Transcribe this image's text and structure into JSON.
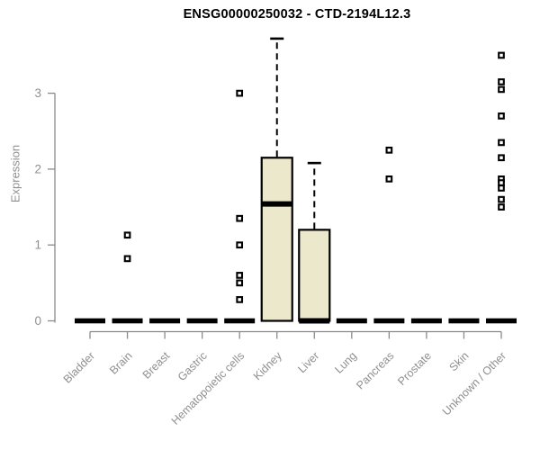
{
  "chart": {
    "title": "ENSG00000250032 - CTD-2194L12.3",
    "ylabel": "Expression"
  },
  "chart_data": {
    "type": "boxplot",
    "title": "ENSG00000250032 - CTD-2194L12.3",
    "xlabel": "",
    "ylabel": "Expression",
    "ylim": [
      0,
      3.8
    ],
    "yticks": [
      0,
      1,
      2,
      3
    ],
    "grid": false,
    "legend": "none",
    "categories": [
      "Bladder",
      "Brain",
      "Breast",
      "Gastric",
      "Hematopoietic cells",
      "Kidney",
      "Liver",
      "Lung",
      "Pancreas",
      "Prostate",
      "Skin",
      "Unknown / Other"
    ],
    "boxes": [
      {
        "category": "Bladder",
        "q1": 0,
        "median": 0,
        "q3": 0,
        "whisker_low": 0,
        "whisker_high": 0,
        "outliers": []
      },
      {
        "category": "Brain",
        "q1": 0,
        "median": 0,
        "q3": 0,
        "whisker_low": 0,
        "whisker_high": 0,
        "outliers": [
          1.13,
          0.82
        ]
      },
      {
        "category": "Breast",
        "q1": 0,
        "median": 0,
        "q3": 0,
        "whisker_low": 0,
        "whisker_high": 0,
        "outliers": []
      },
      {
        "category": "Gastric",
        "q1": 0,
        "median": 0,
        "q3": 0,
        "whisker_low": 0,
        "whisker_high": 0,
        "outliers": []
      },
      {
        "category": "Hematopoietic cells",
        "q1": 0,
        "median": 0,
        "q3": 0,
        "whisker_low": 0,
        "whisker_high": 0,
        "outliers": [
          3.0,
          1.35,
          1.0,
          0.6,
          0.5,
          0.28
        ]
      },
      {
        "category": "Kidney",
        "q1": 0,
        "median": 1.54,
        "q3": 2.15,
        "whisker_low": 0,
        "whisker_high": 3.72,
        "outliers": []
      },
      {
        "category": "Liver",
        "q1": 0,
        "median": 0,
        "q3": 1.2,
        "whisker_low": 0,
        "whisker_high": 2.08,
        "outliers": []
      },
      {
        "category": "Lung",
        "q1": 0,
        "median": 0,
        "q3": 0,
        "whisker_low": 0,
        "whisker_high": 0,
        "outliers": []
      },
      {
        "category": "Pancreas",
        "q1": 0,
        "median": 0,
        "q3": 0,
        "whisker_low": 0,
        "whisker_high": 0,
        "outliers": [
          2.25,
          1.87
        ]
      },
      {
        "category": "Prostate",
        "q1": 0,
        "median": 0,
        "q3": 0,
        "whisker_low": 0,
        "whisker_high": 0,
        "outliers": []
      },
      {
        "category": "Skin",
        "q1": 0,
        "median": 0,
        "q3": 0,
        "whisker_low": 0,
        "whisker_high": 0,
        "outliers": []
      },
      {
        "category": "Unknown / Other",
        "q1": 0,
        "median": 0,
        "q3": 0,
        "whisker_low": 0,
        "whisker_high": 0,
        "outliers": [
          3.5,
          3.15,
          3.05,
          2.7,
          2.35,
          2.15,
          1.87,
          1.82,
          1.75,
          1.6,
          1.5
        ]
      }
    ],
    "colors": {
      "box_fill": "#ece8cb",
      "box_border": "#000000",
      "median": "#000000",
      "outlier": "#000000",
      "axis": "#8a8a8a",
      "tick_label": "#8f8f8f",
      "title": "#000000",
      "background": "#ffffff"
    }
  }
}
